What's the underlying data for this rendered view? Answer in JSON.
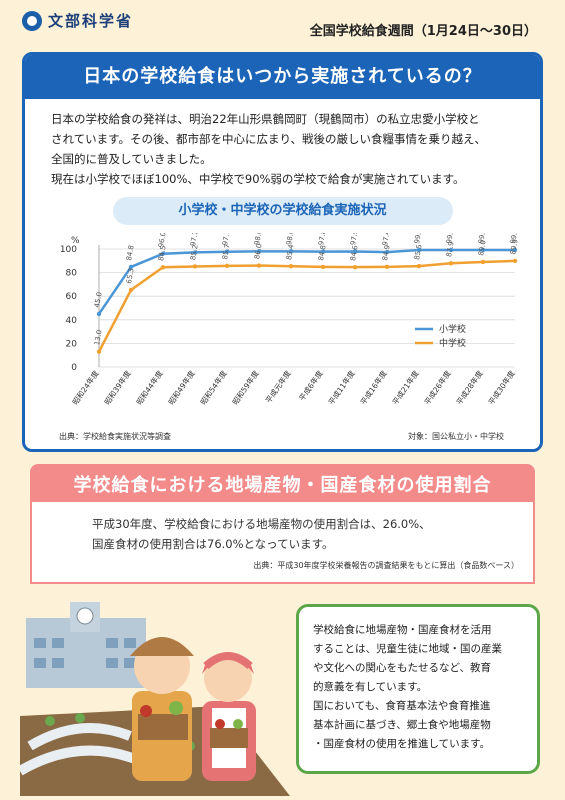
{
  "header": {
    "ministry": "文部科学省",
    "week": "全国学校給食週間（1月24日〜30日）"
  },
  "section1": {
    "title": "日本の学校給食はいつから実施されているの？",
    "paragraphs": [
      "日本の学校給食の発祥は、明治22年山形県鶴岡町（現鶴岡市）の私立忠愛小学校と",
      "されています。その後、都市部を中心に広まり、戦後の厳しい食糧事情を乗り越え、",
      "全国的に普及していきました。",
      "現在は小学校でほぼ100%、中学校で90%弱の学校で給食が実施されています。"
    ],
    "source": "出典：学校給食実施状況等調査",
    "target": "対象：国公私立小・中学校"
  },
  "chart_data": {
    "type": "line",
    "title": "小学校・中学校の学校給食実施状況",
    "ylabel": "%",
    "ylim": [
      0,
      100
    ],
    "yticks": [
      0,
      20,
      40,
      60,
      80,
      100
    ],
    "categories": [
      "昭和24年度",
      "昭和39年度",
      "昭和44年度",
      "昭和49年度",
      "昭和54年度",
      "昭和59年度",
      "平成元年度",
      "平成6年度",
      "平成11年度",
      "平成16年度",
      "平成21年度",
      "平成26年度",
      "平成28年度",
      "平成30年度"
    ],
    "series": [
      {
        "name": "小学校",
        "color": "#4a96d6",
        "values": [
          45.0,
          84.8,
          96.0,
          97.1,
          97.7,
          98.0,
          98.0,
          97.8,
          97.9,
          97.4,
          99.2,
          99.2,
          99.2,
          99.1
        ]
      },
      {
        "name": "中学校",
        "color": "#f0a030",
        "values": [
          13.0,
          65.3,
          84.5,
          85.2,
          85.7,
          86.0,
          85.4,
          84.8,
          84.6,
          84.9,
          85.5,
          87.9,
          89.0,
          89.9
        ]
      }
    ],
    "legend": "bottom-right"
  },
  "section2": {
    "title": "学校給食における地場産物・国産食材の使用割合",
    "line1": "平成30年度、学校給食における地場産物の使用割合は、26.0%、",
    "line2": "国産食材の使用割合は76.0%となっています。",
    "source": "出典：平成30年度学校栄養報告の調査結果をもとに算出（食品数ベース）"
  },
  "speech": {
    "lines": [
      "学校給食に地場産物・国産食材を活用",
      "することは、児童生徒に地域・国の産業",
      "や文化への関心をもたせるなど、教育",
      "的意義を有しています。",
      "国においても、食育基本法や食育推進",
      "基本計画に基づき、郷土食や地場産物",
      "・国産食材の使用を推進しています。"
    ]
  }
}
